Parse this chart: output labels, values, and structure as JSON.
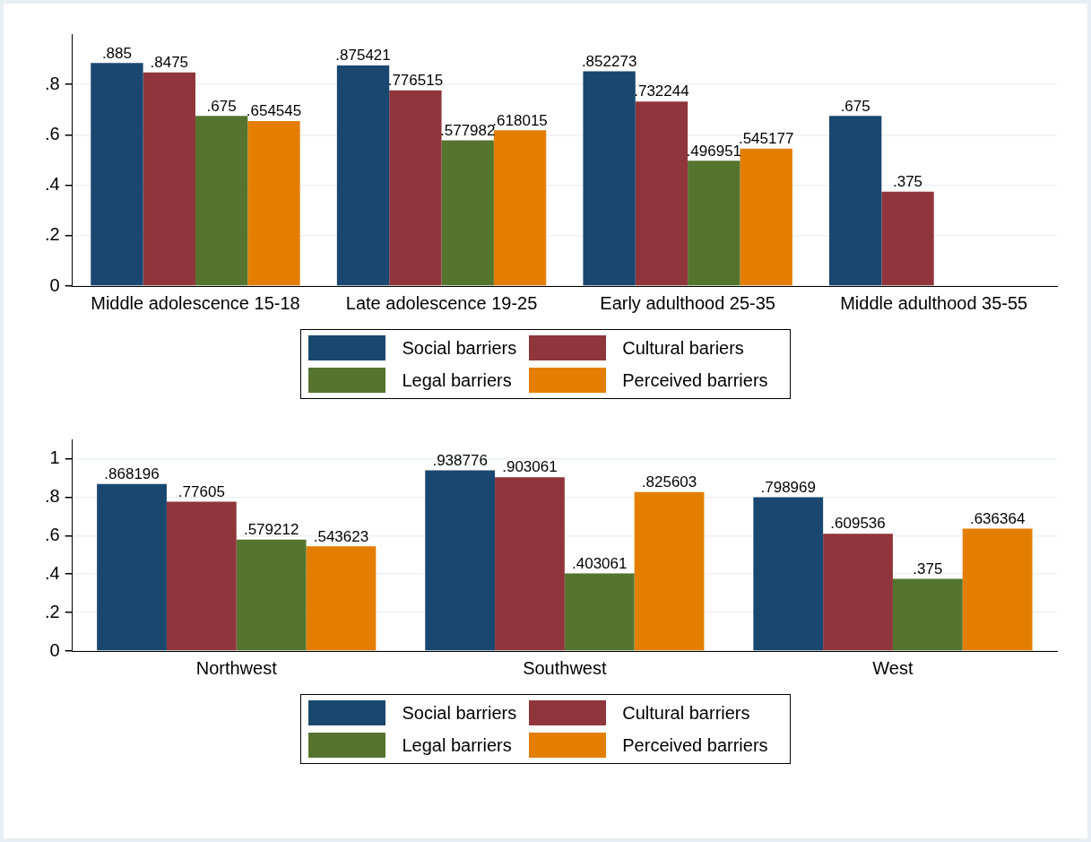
{
  "chart_data": [
    {
      "type": "bar",
      "categories": [
        "Middle adolescence 15-18",
        "Late adolescence 19-25",
        "Early adulthood 25-35",
        "Middle adulthood 35-55"
      ],
      "series": [
        {
          "name": "Social barriers",
          "color": "#1a476f",
          "values": [
            0.885,
            0.875421,
            0.852273,
            0.675
          ],
          "value_labels": [
            ".885",
            ".875421",
            ".852273",
            ".675"
          ]
        },
        {
          "name": "Cultural bariers",
          "color": "#90353b",
          "values": [
            0.8475,
            0.776515,
            0.732244,
            0.375
          ],
          "value_labels": [
            ".8475",
            ".776515",
            ".732244",
            ".375"
          ]
        },
        {
          "name": "Legal barriers",
          "color": "#55752f",
          "values": [
            0.675,
            0.577982,
            0.496951,
            null
          ],
          "value_labels": [
            ".675",
            ".577982",
            ".496951",
            null
          ]
        },
        {
          "name": "Perceived barriers",
          "color": "#e37e00",
          "values": [
            0.654545,
            0.618015,
            0.545177,
            null
          ],
          "value_labels": [
            ".654545",
            ".618015",
            ".545177",
            null
          ]
        }
      ],
      "ylim": [
        0,
        1
      ],
      "yticks": [
        {
          "value": 0,
          "label": "0"
        },
        {
          "value": 0.2,
          "label": ".2"
        },
        {
          "value": 0.4,
          "label": ".4"
        },
        {
          "value": 0.6,
          "label": ".6"
        },
        {
          "value": 0.8,
          "label": ".8"
        }
      ],
      "grid": "y",
      "legend": "bottom"
    },
    {
      "type": "bar",
      "categories": [
        "Northwest",
        "Southwest",
        "West"
      ],
      "series": [
        {
          "name": "Social barriers",
          "color": "#1a476f",
          "values": [
            0.868196,
            0.938776,
            0.798969
          ],
          "value_labels": [
            ".868196",
            ".938776",
            ".798969"
          ]
        },
        {
          "name": "Cultural barriers",
          "color": "#90353b",
          "values": [
            0.77605,
            0.903061,
            0.609536
          ],
          "value_labels": [
            ".77605",
            ".903061",
            ".609536"
          ]
        },
        {
          "name": "Legal barriers",
          "color": "#55752f",
          "values": [
            0.579212,
            0.403061,
            0.375
          ],
          "value_labels": [
            ".579212",
            ".403061",
            ".375"
          ]
        },
        {
          "name": "Perceived barriers",
          "color": "#e37e00",
          "values": [
            0.543623,
            0.825603,
            0.636364
          ],
          "value_labels": [
            ".543623",
            ".825603",
            ".636364"
          ]
        }
      ],
      "ylim": [
        0,
        1.1
      ],
      "yticks": [
        {
          "value": 0,
          "label": "0"
        },
        {
          "value": 0.2,
          "label": ".2"
        },
        {
          "value": 0.4,
          "label": ".4"
        },
        {
          "value": 0.6,
          "label": ".6"
        },
        {
          "value": 0.8,
          "label": ".8"
        },
        {
          "value": 1,
          "label": "1"
        }
      ],
      "grid": "y",
      "legend": "bottom"
    }
  ]
}
